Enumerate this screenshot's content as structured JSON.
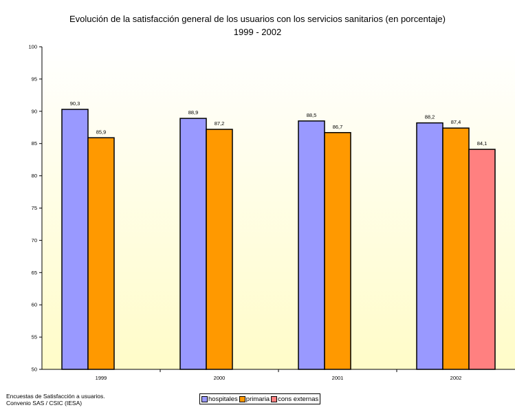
{
  "title": "Evolución de la satisfacción general de los usuarios con los servicios sanitarios (en porcentaje)",
  "subtitle": "1999 - 2002",
  "source_note": [
    "Encuestas de Satisfacción a usuarios.",
    "Convenio SAS / CSIC (IESA)"
  ],
  "colors": {
    "hospitales": "#9999ff",
    "primaria": "#ff9900",
    "cons_externas": "#ff8080",
    "plot_bg_top": "#ffffff",
    "plot_bg_bottom": "#fffcc8"
  },
  "chart_data": {
    "type": "bar",
    "title": "Evolución de la satisfacción general de los usuarios con los servicios sanitarios (en porcentaje)",
    "subtitle": "1999 - 2002",
    "categories": [
      "1999",
      "2000",
      "2001",
      "2002"
    ],
    "series": [
      {
        "name": "hospitales",
        "values": [
          90.3,
          88.9,
          88.5,
          88.2
        ],
        "labels": [
          "90,3",
          "88,9",
          "88,5",
          "88,2"
        ]
      },
      {
        "name": "primaria",
        "values": [
          85.9,
          87.2,
          86.7,
          87.4
        ],
        "labels": [
          "85,9",
          "87,2",
          "86,7",
          "87,4"
        ]
      },
      {
        "name": "cons externas",
        "values": [
          null,
          null,
          null,
          84.1
        ],
        "labels": [
          null,
          null,
          null,
          "84,1"
        ]
      }
    ],
    "ylim": [
      50,
      100
    ],
    "yticks": [
      "50",
      "55",
      "60",
      "65",
      "70",
      "75",
      "80",
      "85",
      "90",
      "95",
      "100"
    ],
    "grid": false,
    "legend_position": "bottom"
  }
}
